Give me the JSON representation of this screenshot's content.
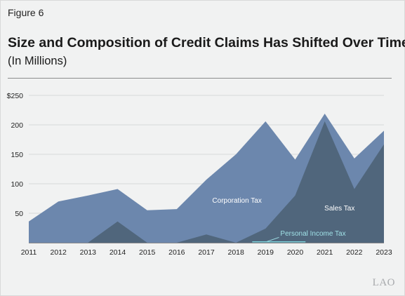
{
  "figure_label": "Figure 6",
  "title": "Size and Composition of Credit Claims Has Shifted Over Time",
  "subtitle": "(In Millions)",
  "logo_text": "LAO",
  "chart_data": {
    "type": "area",
    "x": [
      2011,
      2012,
      2013,
      2014,
      2015,
      2016,
      2017,
      2018,
      2019,
      2020,
      2021,
      2022,
      2023
    ],
    "y_ticks": [
      {
        "value": 250,
        "label": "$250"
      },
      {
        "value": 200,
        "label": "200"
      },
      {
        "value": 150,
        "label": "150"
      },
      {
        "value": 100,
        "label": "100"
      },
      {
        "value": 50,
        "label": "50"
      }
    ],
    "ylim": [
      0,
      250
    ],
    "grid": true,
    "total": [
      36,
      70,
      80,
      91,
      55,
      57,
      107,
      150,
      206,
      141,
      219,
      143,
      190
    ],
    "series": [
      {
        "name": "Corporation Tax",
        "color": "#6c87ad",
        "label_at": {
          "x": 2017.2,
          "y": 68
        }
      },
      {
        "name": "Sales Tax",
        "values": [
          0,
          0,
          0,
          36,
          0,
          0,
          14,
          0,
          24,
          80,
          206,
          91,
          167
        ],
        "color": "#50667c",
        "label_at": {
          "x": 2021.5,
          "y": 55
        }
      },
      {
        "name": "Personal Income Tax",
        "values": [
          0,
          0,
          0,
          0,
          0,
          0,
          0,
          0,
          2,
          2,
          0,
          0,
          0
        ],
        "color": "#7dd0d8",
        "label_at": {
          "x": 2019.5,
          "y": 12
        }
      }
    ]
  }
}
